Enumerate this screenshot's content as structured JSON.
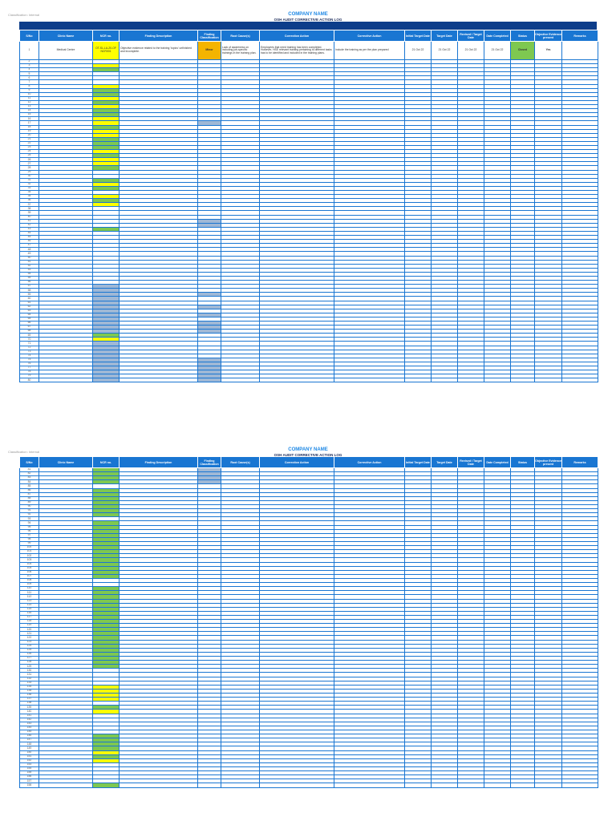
{
  "classification": "Classification: Internal",
  "company_name": "COMPANY NAME",
  "log_title": "OSH AUDIT CORRECTIVE ACTION LOG",
  "headers": [
    "S/No",
    "Clinic Name",
    "NCR no.",
    "Finding Description",
    "Finding Classification",
    "Root Cause(s)",
    "Correction Action",
    "Corrective Action",
    "Initial Target Date",
    "Target Date",
    "Revised / Target Date",
    "Date Completed",
    "Status",
    "Objective Evidence present",
    "Remarks"
  ],
  "first_row": {
    "sn": "1",
    "clinic": "Medical Centre",
    "ncr": "OT-SL-LA-20-OF NCR001",
    "finding": "Objective evidence related to the training 'topics' unfinished and incomplete.",
    "classification": "Minor",
    "root_cause": "Lack of awareness on including job-specific trainings in the training plan.",
    "correction": "Employees that need training has been completed. However, HSE relevant training pertaining to different tasks has to be identified and included in the training plans.",
    "corrective": "Include the training as per the plan prepared",
    "initial_target": "21 Oct 22",
    "target": "21 Oct 22",
    "revised": "21 Oct 22",
    "completed": "21 Oct 22",
    "status": "Closed",
    "evidence": "Yes",
    "remarks": ""
  },
  "colors": {
    "header": "#1976d2",
    "banner": "#0d3d8a",
    "green": "#7ec850",
    "yellow": "#ffff00",
    "blue_grey": "#9fb8d6",
    "orange": "#f4b400"
  },
  "page1_ncr_colors": [
    "",
    "Y",
    "G",
    "",
    "",
    "",
    "Y",
    "G",
    "G",
    "Y",
    "G",
    "Y",
    "G",
    "G",
    "Y",
    "Y",
    "G",
    "Y",
    "Y",
    "G",
    "G",
    "G",
    "Y",
    "G",
    "Y",
    "Y",
    "G",
    "",
    "",
    "G",
    "Y",
    "G",
    "",
    "Y",
    "G",
    "Y",
    "",
    "",
    "",
    "",
    "",
    "G",
    "",
    "",
    "",
    "",
    "",
    "",
    "",
    "",
    "",
    "",
    "",
    "",
    "",
    "B",
    "B",
    "B",
    "B",
    "B",
    "B",
    "B",
    "B",
    "B",
    "B",
    "B",
    "B",
    "G",
    "Y",
    "B",
    "B",
    "B",
    "B",
    "B",
    "B",
    "B",
    "B",
    "B",
    "B",
    "B"
  ],
  "page1_cls_colors": [
    "",
    "",
    "",
    "",
    "",
    "",
    "",
    "",
    "",
    "",
    "",
    "",
    "",
    "",
    "",
    "B",
    "",
    "",
    "",
    "",
    "",
    "",
    "",
    "",
    "",
    "",
    "",
    "",
    "",
    "",
    "",
    "",
    "",
    "",
    "",
    "",
    "",
    "",
    "",
    "B",
    "B",
    "",
    "",
    "",
    "",
    "",
    "",
    "",
    "",
    "",
    "",
    "",
    "",
    "",
    "",
    "",
    "",
    "B",
    "",
    "",
    "B",
    "",
    "B",
    "",
    "B",
    "B",
    "B",
    "",
    "",
    "",
    "",
    "",
    "",
    "B",
    "B",
    "B",
    "B",
    "B",
    "B",
    "B",
    "B",
    "B"
  ],
  "page2_ncr_colors": [
    "G",
    "G",
    "G",
    "G",
    "",
    "G",
    "G",
    "G",
    "G",
    "G",
    "G",
    "G",
    "",
    "G",
    "G",
    "G",
    "G",
    "G",
    "G",
    "G",
    "G",
    "G",
    "G",
    "G",
    "G",
    "G",
    "G",
    "",
    "",
    "G",
    "G",
    "G",
    "G",
    "G",
    "G",
    "G",
    "G",
    "G",
    "G",
    "G",
    "G",
    "G",
    "G",
    "G",
    "G",
    "G",
    "G",
    "G",
    "G",
    "",
    "",
    "",
    "",
    "Y",
    "Y",
    "Y",
    "Y",
    "",
    "G",
    "Y",
    "",
    "",
    "",
    "",
    "",
    "G",
    "G",
    "G",
    "G",
    "Y",
    "G",
    "Y",
    "",
    "",
    "",
    "",
    "",
    "G"
  ],
  "page2_cls_colors": [
    "B",
    "B",
    "B",
    "B",
    "",
    "",
    "",
    "",
    "",
    "",
    "",
    "",
    "",
    "",
    "",
    "",
    "",
    "",
    "",
    "",
    "",
    "",
    "",
    "",
    "",
    "",
    "",
    "",
    "",
    "",
    "",
    "",
    "",
    "",
    "",
    "",
    "",
    "",
    "",
    "",
    "",
    "",
    "",
    "",
    "",
    "",
    "",
    "",
    "",
    "",
    "",
    "",
    "",
    "",
    "",
    "",
    "",
    "",
    "",
    "",
    "",
    "",
    "",
    "",
    "",
    "",
    "",
    "",
    "",
    "",
    "",
    "",
    "",
    "",
    "",
    "",
    ""
  ]
}
